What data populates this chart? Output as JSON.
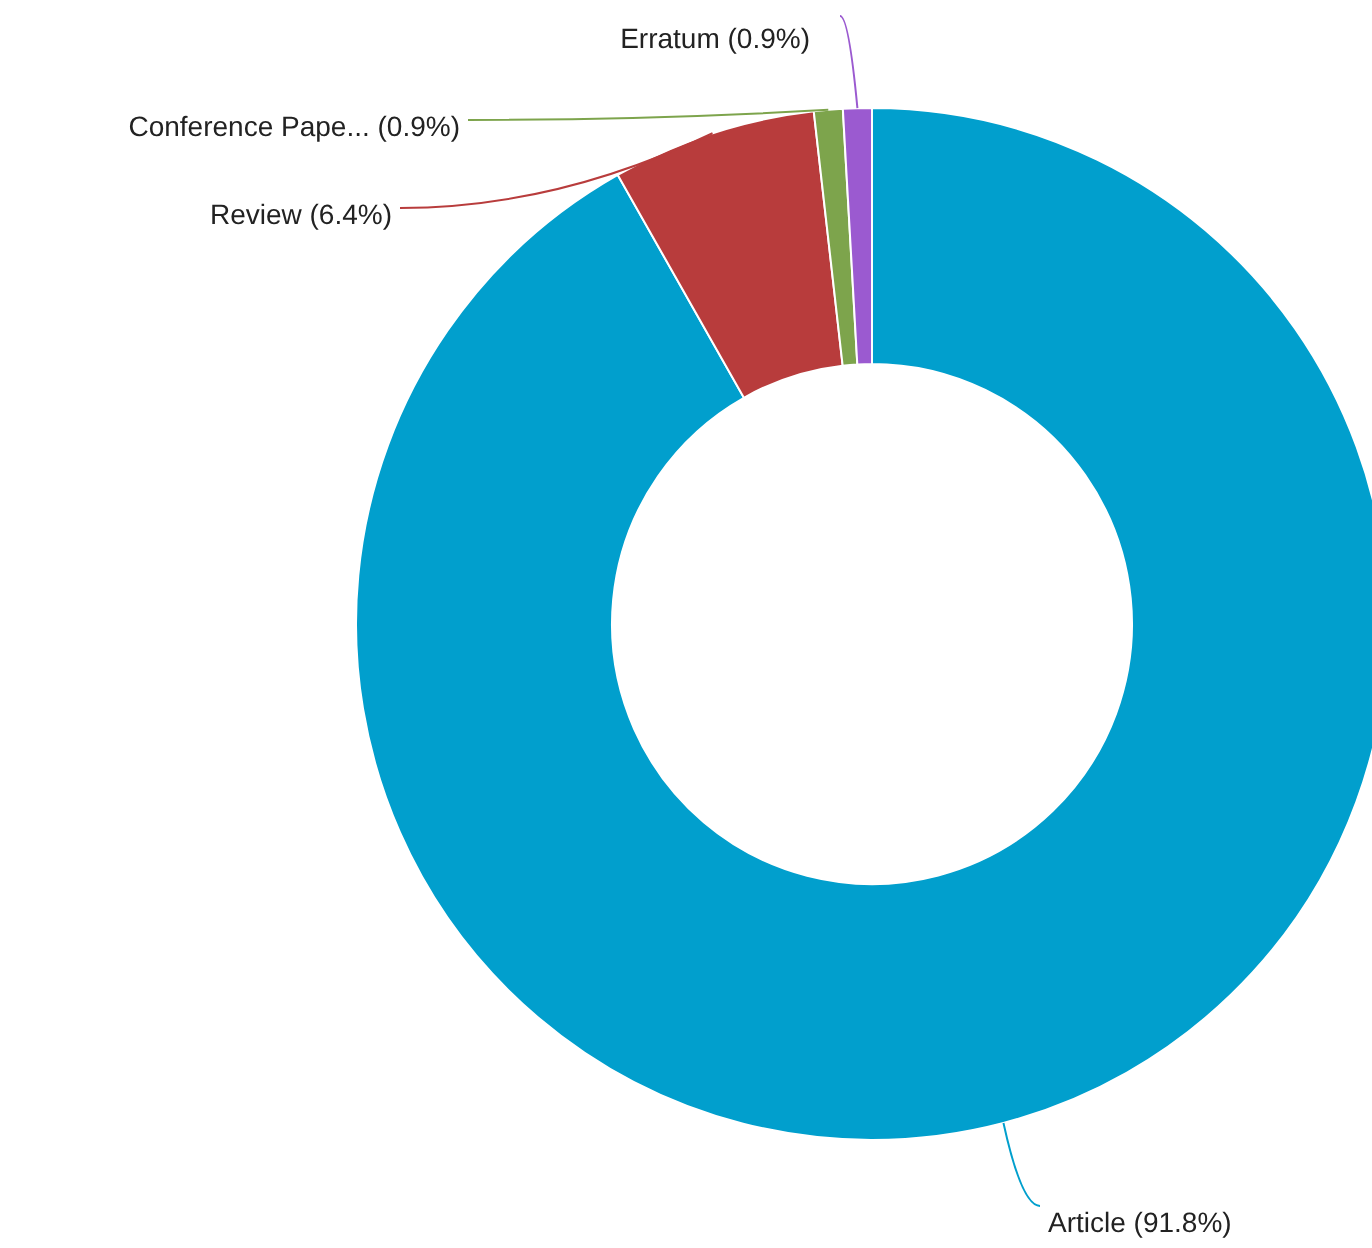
{
  "chart_data": {
    "type": "donut",
    "categories": [
      "Article",
      "Review",
      "Conference Pape...",
      "Erratum"
    ],
    "values": [
      91.8,
      6.4,
      0.9,
      0.9
    ],
    "value_labels": [
      "(91.8%)",
      "(6.4%)",
      "(0.9%)",
      "(0.9%)"
    ],
    "colors": [
      "#019fcd",
      "#b83c3c",
      "#7da44c",
      "#9b5ad0"
    ],
    "legend": false
  }
}
